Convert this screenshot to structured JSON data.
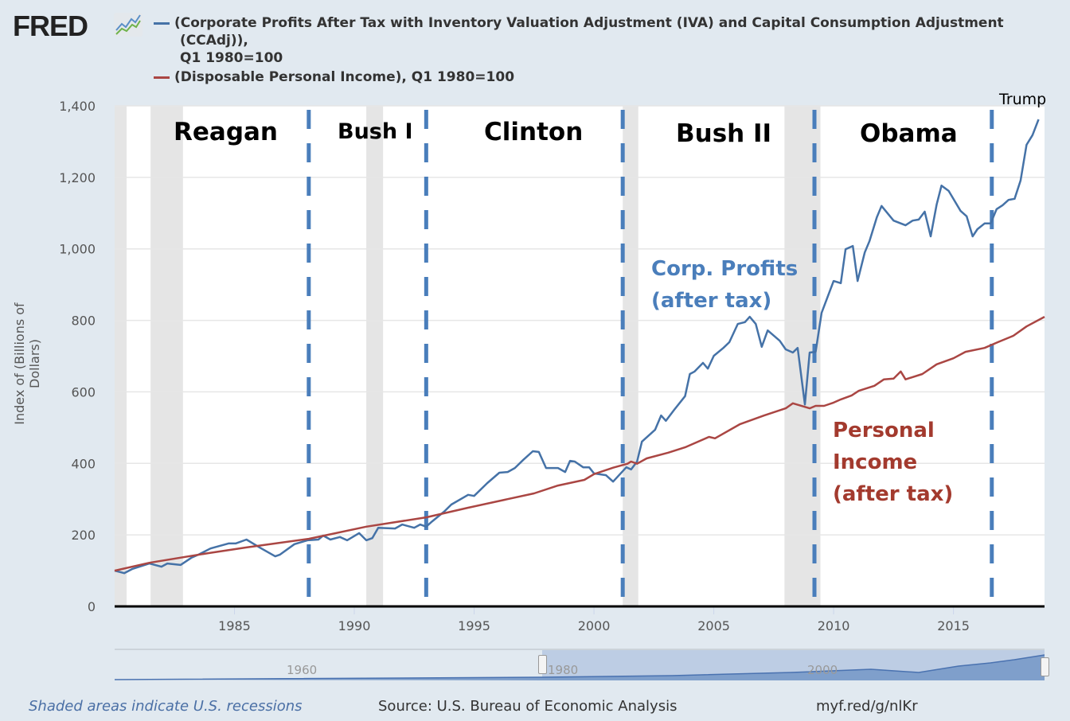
{
  "header": {
    "logo": "FRED",
    "logo_icon": "chart-line-icon",
    "legend": [
      {
        "lines": [
          "(Corporate Profits After Tax with Inventory Valuation Adjustment (IVA) and Capital Consumption Adjustment",
          "(CCAdj)),",
          "Q1 1980=100"
        ],
        "color": "#4572a7"
      },
      {
        "lines": [
          "(Disposable Personal Income), Q1 1980=100"
        ],
        "color": "#aa4643"
      }
    ]
  },
  "chart_data": {
    "type": "line",
    "xlabel": "",
    "ylabel": "Index of (Billions of Dollars)",
    "xlim": [
      1980,
      2018.8
    ],
    "ylim": [
      0,
      1400
    ],
    "x_ticks": [
      1985,
      1990,
      1995,
      2000,
      2005,
      2010,
      2015
    ],
    "y_ticks": [
      0,
      200,
      400,
      600,
      800,
      1000,
      1200,
      1400
    ],
    "y_tick_labels": [
      "0",
      "200",
      "400",
      "600",
      "800",
      "1,000",
      "1,200",
      "1,400"
    ],
    "grid": true,
    "recessions": [
      [
        1980.0,
        1980.5
      ],
      [
        1981.5,
        1982.85
      ],
      [
        1990.5,
        1991.2
      ],
      [
        2001.2,
        2001.85
      ],
      [
        2007.95,
        2009.45
      ]
    ],
    "term_boundaries": [
      1988.1,
      1993.0,
      2001.2,
      2009.2,
      2016.6
    ],
    "term_labels": [
      "Reagan",
      "Bush I",
      "Clinton",
      "Bush II",
      "Obama",
      "Trump"
    ],
    "series": [
      {
        "color": "#4572a7",
        "points": [
          [
            1980.0,
            100
          ],
          [
            1980.4,
            93
          ],
          [
            1980.75,
            105
          ],
          [
            1981.45,
            120
          ],
          [
            1981.95,
            111
          ],
          [
            1982.2,
            120
          ],
          [
            1982.75,
            116
          ],
          [
            1983.2,
            136
          ],
          [
            1983.5,
            145
          ],
          [
            1984.0,
            162
          ],
          [
            1984.75,
            176
          ],
          [
            1985.05,
            176
          ],
          [
            1985.5,
            187
          ],
          [
            1986.05,
            165
          ],
          [
            1986.7,
            140
          ],
          [
            1986.9,
            145
          ],
          [
            1987.5,
            174
          ],
          [
            1988.05,
            185
          ],
          [
            1988.5,
            187
          ],
          [
            1988.7,
            198
          ],
          [
            1989.0,
            187
          ],
          [
            1989.4,
            194
          ],
          [
            1989.7,
            185
          ],
          [
            1990.2,
            205
          ],
          [
            1990.5,
            185
          ],
          [
            1990.75,
            191
          ],
          [
            1991.0,
            220
          ],
          [
            1991.7,
            218
          ],
          [
            1992.0,
            229
          ],
          [
            1992.5,
            220
          ],
          [
            1992.75,
            229
          ],
          [
            1993.0,
            223
          ],
          [
            1993.25,
            238
          ],
          [
            1993.75,
            265
          ],
          [
            1994.05,
            285
          ],
          [
            1994.75,
            312
          ],
          [
            1995.0,
            309
          ],
          [
            1995.55,
            345
          ],
          [
            1996.05,
            374
          ],
          [
            1996.4,
            376
          ],
          [
            1996.7,
            387
          ],
          [
            1997.05,
            410
          ],
          [
            1997.45,
            434
          ],
          [
            1997.7,
            432
          ],
          [
            1998.0,
            387
          ],
          [
            1998.5,
            387
          ],
          [
            1998.8,
            376
          ],
          [
            1999.0,
            407
          ],
          [
            1999.2,
            405
          ],
          [
            1999.55,
            389
          ],
          [
            1999.8,
            389
          ],
          [
            2000.0,
            372
          ],
          [
            2000.5,
            367
          ],
          [
            2000.8,
            349
          ],
          [
            2001.35,
            389
          ],
          [
            2001.55,
            383
          ],
          [
            2001.8,
            405
          ],
          [
            2002.0,
            461
          ],
          [
            2002.55,
            494
          ],
          [
            2002.8,
            534
          ],
          [
            2003.0,
            519
          ],
          [
            2003.35,
            550
          ],
          [
            2003.8,
            588
          ],
          [
            2004.0,
            650
          ],
          [
            2004.2,
            657
          ],
          [
            2004.55,
            681
          ],
          [
            2004.75,
            665
          ],
          [
            2005.0,
            701
          ],
          [
            2005.4,
            723
          ],
          [
            2005.65,
            739
          ],
          [
            2006.0,
            790
          ],
          [
            2006.3,
            795
          ],
          [
            2006.5,
            810
          ],
          [
            2006.75,
            790
          ],
          [
            2007.0,
            726
          ],
          [
            2007.25,
            772
          ],
          [
            2007.75,
            743
          ],
          [
            2008.0,
            719
          ],
          [
            2008.3,
            710
          ],
          [
            2008.5,
            723
          ],
          [
            2008.8,
            565
          ],
          [
            2009.0,
            710
          ],
          [
            2009.25,
            712
          ],
          [
            2009.5,
            821
          ],
          [
            2009.75,
            866
          ],
          [
            2010.0,
            910
          ],
          [
            2010.3,
            904
          ],
          [
            2010.5,
            999
          ],
          [
            2010.8,
            1008
          ],
          [
            2011.0,
            910
          ],
          [
            2011.3,
            990
          ],
          [
            2011.5,
            1022
          ],
          [
            2011.8,
            1088
          ],
          [
            2012.0,
            1120
          ],
          [
            2012.5,
            1079
          ],
          [
            2013.0,
            1066
          ],
          [
            2013.3,
            1079
          ],
          [
            2013.55,
            1082
          ],
          [
            2013.8,
            1104
          ],
          [
            2014.05,
            1035
          ],
          [
            2014.3,
            1124
          ],
          [
            2014.5,
            1177
          ],
          [
            2014.8,
            1162
          ],
          [
            2015.3,
            1106
          ],
          [
            2015.55,
            1091
          ],
          [
            2015.8,
            1035
          ],
          [
            2016.0,
            1055
          ],
          [
            2016.3,
            1071
          ],
          [
            2016.55,
            1071
          ],
          [
            2016.8,
            1111
          ],
          [
            2017.05,
            1122
          ],
          [
            2017.3,
            1137
          ],
          [
            2017.55,
            1140
          ],
          [
            2017.8,
            1191
          ],
          [
            2018.05,
            1291
          ],
          [
            2018.3,
            1318
          ],
          [
            2018.55,
            1362
          ]
        ]
      },
      {
        "color": "#aa4643",
        "points": [
          [
            1980.0,
            100
          ],
          [
            1981.45,
            122
          ],
          [
            1983.9,
            149
          ],
          [
            1985.5,
            165
          ],
          [
            1988.1,
            189
          ],
          [
            1990.5,
            223
          ],
          [
            1993.0,
            249
          ],
          [
            1994.75,
            276
          ],
          [
            1997.5,
            316
          ],
          [
            1998.5,
            338
          ],
          [
            1999.6,
            354
          ],
          [
            2000.0,
            370
          ],
          [
            2000.8,
            388
          ],
          [
            2001.4,
            399
          ],
          [
            2001.55,
            405
          ],
          [
            2001.8,
            399
          ],
          [
            2002.2,
            414
          ],
          [
            2003.1,
            430
          ],
          [
            2003.8,
            445
          ],
          [
            2004.8,
            474
          ],
          [
            2005.05,
            470
          ],
          [
            2006.1,
            510
          ],
          [
            2007.1,
            534
          ],
          [
            2008.0,
            554
          ],
          [
            2008.3,
            568
          ],
          [
            2009.0,
            554
          ],
          [
            2009.25,
            561
          ],
          [
            2009.6,
            561
          ],
          [
            2010.0,
            570
          ],
          [
            2010.3,
            579
          ],
          [
            2010.75,
            590
          ],
          [
            2011.05,
            603
          ],
          [
            2011.7,
            617
          ],
          [
            2012.1,
            635
          ],
          [
            2012.5,
            637
          ],
          [
            2012.8,
            657
          ],
          [
            2013.0,
            635
          ],
          [
            2013.7,
            650
          ],
          [
            2014.3,
            677
          ],
          [
            2015.0,
            694
          ],
          [
            2015.5,
            712
          ],
          [
            2016.3,
            723
          ],
          [
            2016.85,
            739
          ],
          [
            2017.5,
            757
          ],
          [
            2018.05,
            783
          ],
          [
            2018.8,
            810
          ]
        ]
      }
    ],
    "annotations": {
      "profits": [
        "Corp. Profits",
        "(after tax)"
      ],
      "income": [
        "Personal",
        "Income",
        "(after tax)"
      ]
    }
  },
  "navigator": {
    "labels": [
      "1960",
      "1980",
      "2000"
    ]
  },
  "footer": {
    "recession_note": "Shaded areas indicate U.S. recessions",
    "source": "Source: U.S. Bureau of Economic Analysis",
    "link": "myf.red/g/nlKr"
  }
}
